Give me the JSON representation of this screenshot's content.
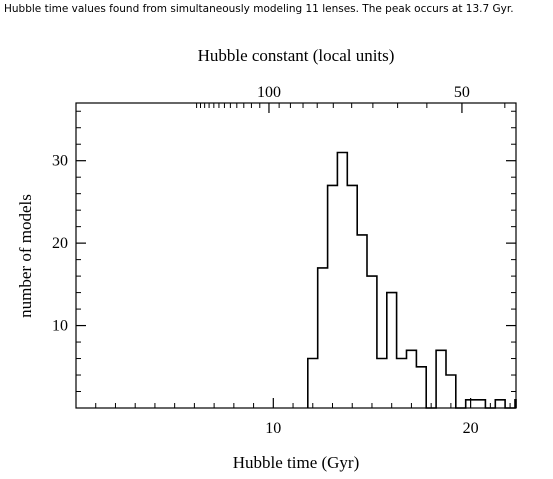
{
  "caption": "Hubble time values found from simultaneously modeling 11 lenses. The peak occurs at 13.7 Gyr.",
  "chart_data": {
    "type": "histogram",
    "title": "",
    "xlabel": "Hubble time (Gyr)",
    "ylabel": "number of models",
    "top_axis_label": "Hubble constant (local units)",
    "xlim": [
      0,
      22.3
    ],
    "ylim": [
      0,
      37
    ],
    "x_ticks": [
      10,
      20
    ],
    "y_ticks": [
      10,
      20,
      30
    ],
    "top_ticks": [
      {
        "label": "100",
        "x": 9.78
      },
      {
        "label": "50",
        "x": 19.56
      }
    ],
    "bin_width": 0.5,
    "bins": [
      {
        "x0": 11.75,
        "count": 6
      },
      {
        "x0": 12.25,
        "count": 17
      },
      {
        "x0": 12.75,
        "count": 27
      },
      {
        "x0": 13.25,
        "count": 31
      },
      {
        "x0": 13.75,
        "count": 27
      },
      {
        "x0": 14.25,
        "count": 21
      },
      {
        "x0": 14.75,
        "count": 16
      },
      {
        "x0": 15.25,
        "count": 6
      },
      {
        "x0": 15.75,
        "count": 14
      },
      {
        "x0": 16.25,
        "count": 6
      },
      {
        "x0": 16.75,
        "count": 7
      },
      {
        "x0": 17.25,
        "count": 5
      },
      {
        "x0": 17.75,
        "count": 0
      },
      {
        "x0": 18.25,
        "count": 7
      },
      {
        "x0": 18.75,
        "count": 4
      },
      {
        "x0": 19.25,
        "count": 0
      },
      {
        "x0": 19.75,
        "count": 1
      },
      {
        "x0": 20.25,
        "count": 1
      },
      {
        "x0": 20.75,
        "count": 0
      },
      {
        "x0": 21.25,
        "count": 1
      },
      {
        "x0": 21.75,
        "count": 0
      },
      {
        "x0": 22.25,
        "count": 1
      }
    ],
    "grid": false,
    "legend": "none"
  },
  "colors": {
    "line": "#000000",
    "background": "#ffffff"
  }
}
